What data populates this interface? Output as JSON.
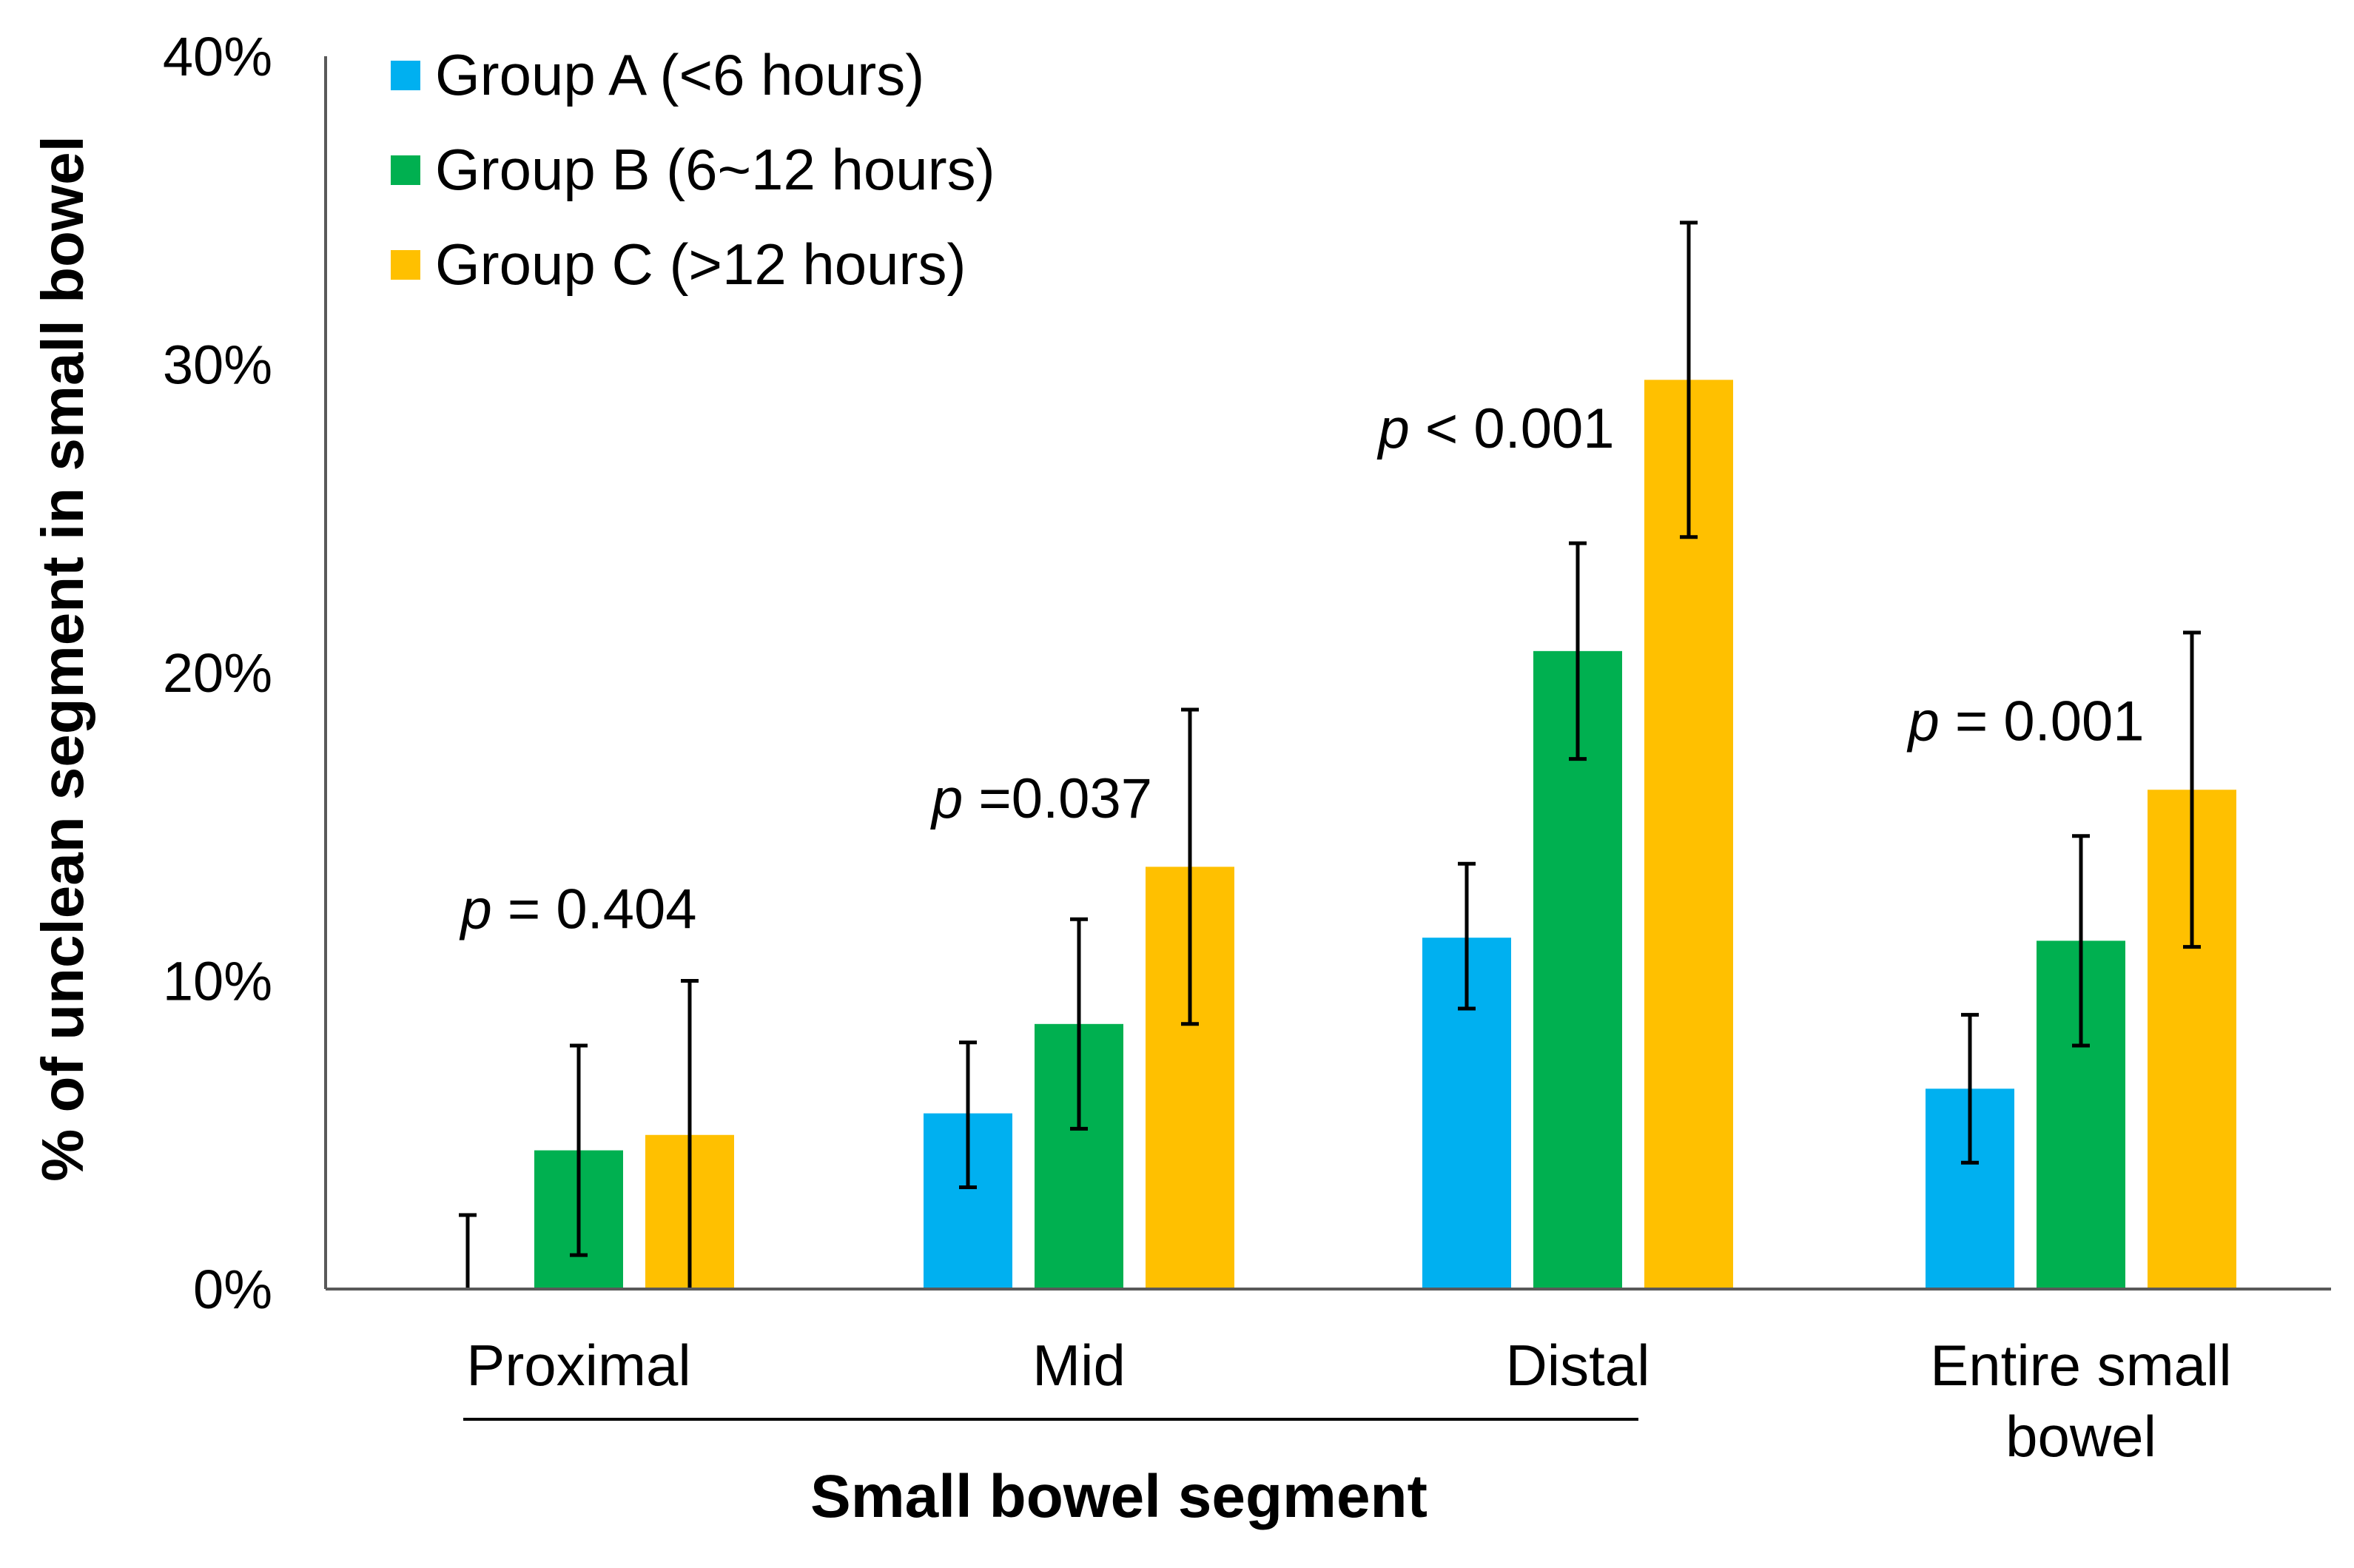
{
  "chart_data": {
    "type": "bar",
    "xlabel": "Small bowel segment",
    "ylabel": "% of unclean segment in small bowel",
    "ylim": [
      0,
      40
    ],
    "yticks": [
      0,
      10,
      20,
      30,
      40
    ],
    "ytick_labels": [
      "0%",
      "10%",
      "20%",
      "30%",
      "40%"
    ],
    "categories": [
      [
        "Proximal"
      ],
      [
        "Mid"
      ],
      [
        "Distal"
      ],
      [
        "Entire small",
        "bowel"
      ]
    ],
    "series": [
      {
        "name": "Group A (<6 hours)",
        "color": "#00B0F0",
        "values": [
          0.0,
          5.7,
          11.4,
          6.5
        ],
        "err_low": [
          0.0,
          2.4,
          2.3,
          2.4
        ],
        "err_high": [
          2.4,
          2.3,
          2.4,
          2.4
        ]
      },
      {
        "name": "Group B (6~12 hours)",
        "color": "#00B050",
        "values": [
          4.5,
          8.6,
          20.7,
          11.3
        ],
        "err_low": [
          3.4,
          3.4,
          3.5,
          3.4
        ],
        "err_high": [
          3.4,
          3.4,
          3.5,
          3.4
        ]
      },
      {
        "name": "Group C (>12 hours)",
        "color": "#FFC000",
        "values": [
          5.0,
          13.7,
          29.5,
          16.2
        ],
        "err_low": [
          5.0,
          5.1,
          5.1,
          5.1
        ],
        "err_high": [
          5.0,
          5.1,
          5.1,
          5.1
        ]
      }
    ],
    "annotations": [
      {
        "category": 0,
        "p": "p",
        "rest": " = 0.404",
        "y": 11.7
      },
      {
        "category": 1,
        "p": "p",
        "rest": " =0.037",
        "y": 15.3
      },
      {
        "category": 2,
        "p": "p",
        "rest": " < 0.001",
        "y": 27.3
      },
      {
        "category": 3,
        "p": "p",
        "rest": " = 0.001",
        "y": 17.8
      }
    ],
    "legend_position": "top-left"
  }
}
